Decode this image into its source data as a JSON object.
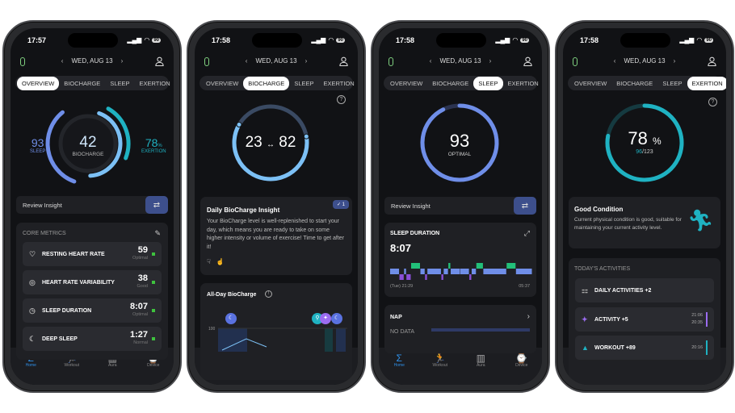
{
  "header": {
    "date": "WED, AUG 13",
    "prev": "‹",
    "next": "›"
  },
  "tabs": [
    "OVERVIEW",
    "BIOCHARGE",
    "SLEEP",
    "EXERTION"
  ],
  "status": {
    "battery": "90",
    "times": [
      "17:57",
      "17:58",
      "17:58",
      "17:58"
    ]
  },
  "nav": [
    {
      "label": "Home",
      "icon": "Σ"
    },
    {
      "label": "Workout",
      "icon": "🏃"
    },
    {
      "label": "Aura",
      "icon": "▥"
    },
    {
      "label": "Device",
      "icon": "⌚"
    }
  ],
  "colors": {
    "sleep": "#6f8ee8",
    "biocharge": "#7cc0f5",
    "exertion": "#1fb2c2",
    "awake": "#22c07a",
    "deep": "#8a4fd8",
    "green_status": "#3ec23e"
  },
  "overview": {
    "sleep": {
      "value": "93",
      "label": "SLEEP",
      "fraction": 0.93
    },
    "biocharge": {
      "value": "42",
      "label": "BIOCHARGE",
      "fraction": 0.42
    },
    "exertion": {
      "value": "78",
      "unit": "%",
      "label": "EXERTION",
      "fraction": 0.78
    },
    "review": "Review Insight",
    "core_title": "CORE METRICS",
    "metrics": [
      {
        "label": "RESTING HEART RATE",
        "value": "59",
        "status": "Optimal",
        "icon": "heartbeat-icon"
      },
      {
        "label": "HEART RATE VARIABILITY",
        "value": "38",
        "status": "Good",
        "icon": "hrv-icon"
      },
      {
        "label": "SLEEP DURATION",
        "value": "8:07",
        "status": "Optimal",
        "icon": "stopwatch-icon"
      },
      {
        "label": "DEEP SLEEP",
        "value": "1:27",
        "status": "Normal",
        "icon": "deep-sleep-icon"
      }
    ]
  },
  "biocharge": {
    "low": "23",
    "arrow": "↔",
    "high": "82",
    "low_fraction": 0.23,
    "high_fraction": 0.82,
    "insight_title": "Daily BioCharge Insight",
    "insight_badge": "1",
    "insight_text": "Your BioCharge level is well-replenished to start your day, which means you are ready to take on some higher intensity or volume of exercise! Time to get after it!",
    "allday_title": "All-Day BioCharge",
    "allday_tick": "100"
  },
  "sleep": {
    "score": "93",
    "label": "OPTIMAL",
    "fraction": 0.93,
    "review": "Review Insight",
    "duration_title": "SLEEP DURATION",
    "duration": "8:07",
    "start": "(Tue) 21:29",
    "end": "05:37",
    "stages": [
      [
        1,
        4
      ],
      [
        2,
        2
      ],
      [
        1,
        1
      ],
      [
        2,
        2
      ],
      [
        0,
        4
      ],
      [
        1,
        2
      ],
      [
        2,
        1
      ],
      [
        1,
        6
      ],
      [
        2,
        1
      ],
      [
        1,
        2
      ],
      [
        0,
        1
      ],
      [
        1,
        4
      ],
      [
        1,
        4
      ],
      [
        2,
        1
      ],
      [
        1,
        2
      ],
      [
        0,
        3
      ],
      [
        1,
        10
      ],
      [
        0,
        4
      ],
      [
        1,
        7
      ]
    ],
    "nap_title": "NAP",
    "nap_value": "NO DATA"
  },
  "exertion": {
    "percent": "78",
    "unit": "%",
    "current": "96",
    "target": "/123",
    "fraction": 0.78,
    "condition_title": "Good Condition",
    "condition_text": "Current physical condition is good, suitable for maintaining your current activity level.",
    "activities_title": "TODAY'S ACTIVITIES",
    "activities": [
      {
        "label": "DAILY ACTIVITIES +2",
        "icon": "grid-icon"
      },
      {
        "label": "ACTIVITY +5",
        "time_end": "21:06",
        "time_start": "20:35",
        "icon": "person-icon",
        "color": "#9b6cf0"
      },
      {
        "label": "WORKOUT +89",
        "time_end": "20:16",
        "icon": "shoe-icon",
        "color": "#1fb2c2"
      }
    ]
  }
}
